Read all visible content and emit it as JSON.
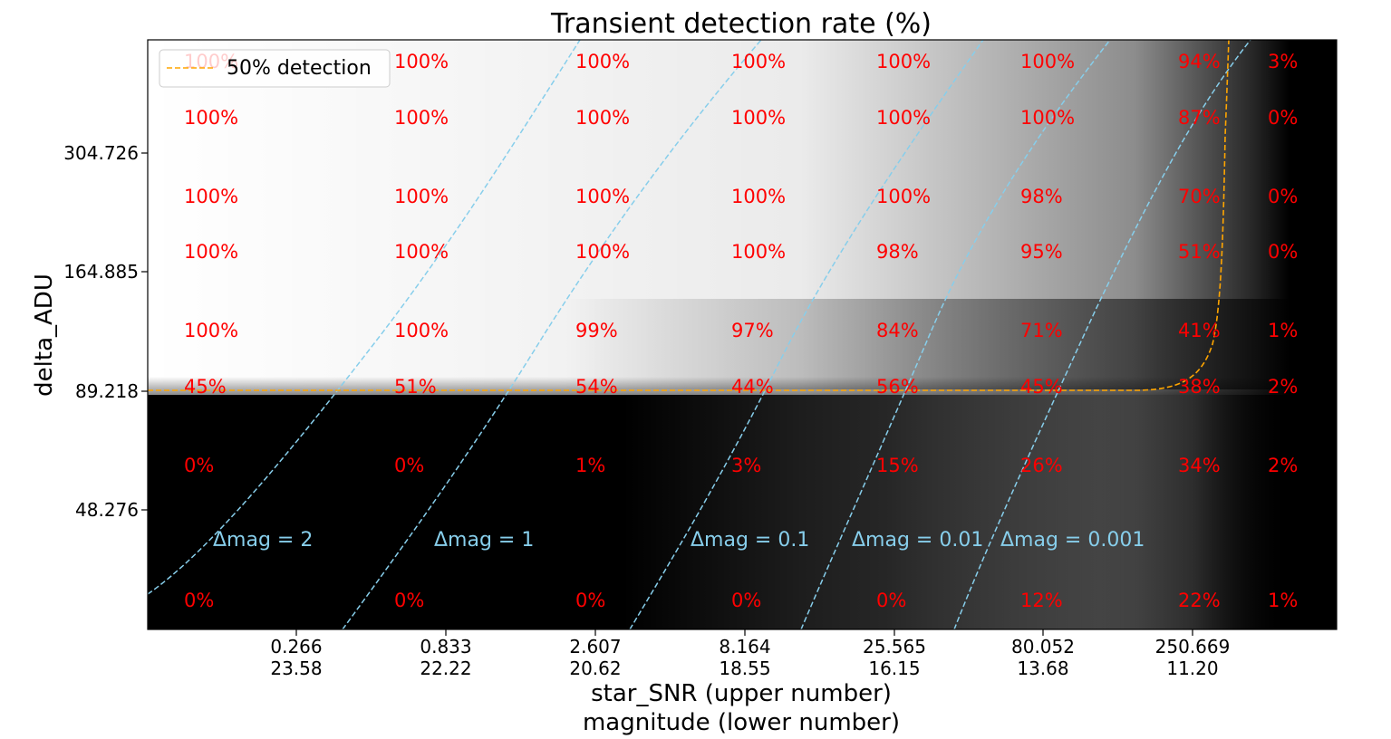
{
  "chart_data": {
    "type": "heatmap",
    "title": "Transient detection rate (%)",
    "ylabel": "delta_ADU",
    "xlabel_upper": "star_SNR (upper number)",
    "xlabel_lower": "magnitude (lower number)",
    "x_ticks": [
      {
        "snr": "0.266",
        "mag": "23.58"
      },
      {
        "snr": "0.833",
        "mag": "22.22"
      },
      {
        "snr": "2.607",
        "mag": "20.62"
      },
      {
        "snr": "8.164",
        "mag": "18.55"
      },
      {
        "snr": "25.565",
        "mag": "16.15"
      },
      {
        "snr": "80.052",
        "mag": "13.68"
      },
      {
        "snr": "250.669",
        "mag": "11.20"
      }
    ],
    "y_ticks": [
      "304.726",
      "164.885",
      "89.218",
      "48.276"
    ],
    "cell_labels": [
      [
        "100%",
        "100%",
        "100%",
        "100%",
        "100%",
        "100%",
        "94%",
        "3%"
      ],
      [
        "100%",
        "100%",
        "100%",
        "100%",
        "100%",
        "100%",
        "87%",
        "0%"
      ],
      [
        "100%",
        "100%",
        "100%",
        "100%",
        "100%",
        "98%",
        "70%",
        "0%"
      ],
      [
        "100%",
        "100%",
        "100%",
        "100%",
        "98%",
        "95%",
        "51%",
        "0%"
      ],
      [
        "100%",
        "100%",
        "99%",
        "97%",
        "84%",
        "71%",
        "41%",
        "1%"
      ],
      [
        "45%",
        "51%",
        "54%",
        "44%",
        "56%",
        "45%",
        "38%",
        "2%"
      ],
      [
        "0%",
        "0%",
        "1%",
        "3%",
        "15%",
        "26%",
        "34%",
        "2%"
      ],
      [
        "0%",
        "0%",
        "0%",
        "0%",
        "0%",
        "12%",
        "22%",
        "1%"
      ]
    ],
    "legend": [
      {
        "name": "50% detection",
        "color": "#ffa500",
        "style": "dashed"
      }
    ],
    "legend_position": "upper-left",
    "contour_labels": [
      "Δmag = 2",
      "Δmag = 1",
      "Δmag = 0.1",
      "Δmag = 0.01",
      "Δmag = 0.001"
    ],
    "colors": {
      "cell_label": "#ff0000",
      "contour": "#87ceeb",
      "threshold": "#ffa500",
      "colormap": "gray"
    }
  }
}
